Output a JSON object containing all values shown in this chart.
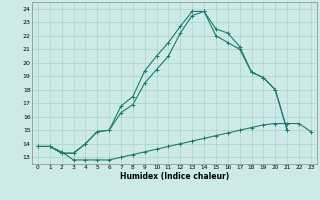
{
  "xlabel": "Humidex (Indice chaleur)",
  "background_color": "#ceeae8",
  "grid_color": "#aad4d0",
  "line_color": "#1a7a6e",
  "xlim": [
    -0.5,
    23.5
  ],
  "ylim": [
    12.5,
    24.5
  ],
  "xticks": [
    0,
    1,
    2,
    3,
    4,
    5,
    6,
    7,
    8,
    9,
    10,
    11,
    12,
    13,
    14,
    15,
    16,
    17,
    18,
    19,
    20,
    21,
    22,
    23
  ],
  "yticks": [
    13,
    14,
    15,
    16,
    17,
    18,
    19,
    20,
    21,
    22,
    23,
    24
  ],
  "curve1_x": [
    0,
    1,
    2,
    3,
    4,
    5,
    6,
    7,
    8,
    9,
    10,
    11,
    12,
    13,
    14,
    15,
    16,
    17,
    18,
    19,
    20,
    21,
    22,
    23
  ],
  "curve1_y": [
    13.8,
    13.8,
    13.4,
    12.8,
    12.8,
    12.8,
    12.8,
    13.0,
    13.2,
    13.4,
    13.6,
    13.8,
    14.0,
    14.2,
    14.4,
    14.6,
    14.8,
    15.0,
    15.2,
    15.4,
    15.5,
    15.5,
    15.5,
    14.9
  ],
  "curve2_x": [
    0,
    1,
    2,
    3,
    4,
    5,
    6,
    7,
    8,
    9,
    10,
    11,
    12,
    13,
    14,
    15,
    16,
    17,
    18,
    19,
    20,
    21
  ],
  "curve2_y": [
    13.8,
    13.8,
    13.3,
    13.3,
    14.0,
    14.9,
    15.0,
    16.8,
    17.5,
    19.4,
    20.5,
    21.5,
    22.7,
    23.8,
    23.8,
    22.5,
    22.2,
    21.2,
    19.3,
    18.9,
    18.0,
    15.0
  ],
  "curve3_x": [
    0,
    1,
    2,
    3,
    4,
    5,
    6,
    7,
    8,
    9,
    10,
    11,
    12,
    13,
    14,
    15,
    16,
    17,
    18,
    19,
    20,
    21
  ],
  "curve3_y": [
    13.8,
    13.8,
    13.3,
    13.3,
    14.0,
    14.9,
    15.0,
    16.3,
    16.9,
    18.5,
    19.5,
    20.5,
    22.2,
    23.5,
    23.8,
    22.0,
    21.5,
    21.0,
    19.3,
    18.9,
    18.0,
    15.0
  ]
}
